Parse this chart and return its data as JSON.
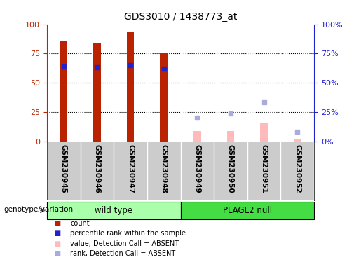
{
  "title": "GDS3010 / 1438773_at",
  "samples": [
    "GSM230945",
    "GSM230946",
    "GSM230947",
    "GSM230948",
    "GSM230949",
    "GSM230950",
    "GSM230951",
    "GSM230952"
  ],
  "count_values": [
    86,
    84,
    93,
    75,
    null,
    null,
    null,
    null
  ],
  "rank_values": [
    64,
    63,
    65,
    62,
    null,
    null,
    null,
    null
  ],
  "absent_value": [
    null,
    null,
    null,
    null,
    9,
    9,
    16,
    2
  ],
  "absent_rank": [
    null,
    null,
    null,
    null,
    20,
    24,
    33,
    8
  ],
  "ylim": [
    0,
    100
  ],
  "yticks": [
    0,
    25,
    50,
    75,
    100
  ],
  "group1_label": "wild type",
  "group2_label": "PLAGL2 null",
  "group_label_prefix": "genotype/variation",
  "group1_indices": [
    0,
    1,
    2,
    3
  ],
  "group2_indices": [
    4,
    5,
    6,
    7
  ],
  "bar_width": 0.22,
  "count_color": "#BB2200",
  "rank_color": "#2222CC",
  "absent_value_color": "#FFBBBB",
  "absent_rank_color": "#AAAADD",
  "group1_color": "#AAFFAA",
  "group2_color": "#44DD44",
  "tick_bg_color": "#CCCCCC",
  "legend_items": [
    {
      "label": "count",
      "color": "#BB2200"
    },
    {
      "label": "percentile rank within the sample",
      "color": "#2222CC"
    },
    {
      "label": "value, Detection Call = ABSENT",
      "color": "#FFBBBB"
    },
    {
      "label": "rank, Detection Call = ABSENT",
      "color": "#AAAADD"
    }
  ],
  "fig_width": 5.15,
  "fig_height": 3.84,
  "dpi": 100
}
